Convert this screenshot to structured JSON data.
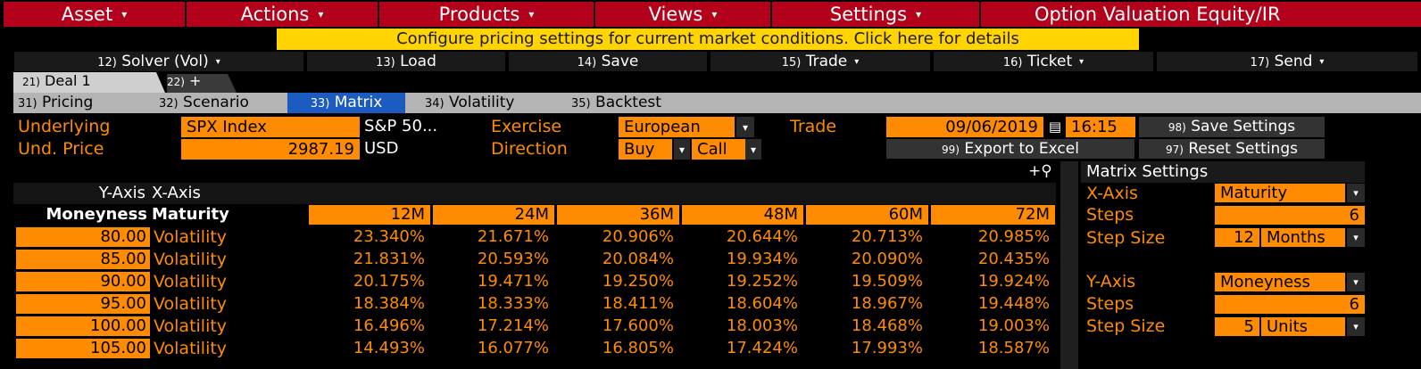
{
  "menu": {
    "asset": "Asset",
    "actions": "Actions",
    "products": "Products",
    "views": "Views",
    "settings": "Settings",
    "title": "Option Valuation Equity/IR",
    "caret": "▾"
  },
  "notice": "Configure pricing settings for current market conditions. Click here for details",
  "actions": [
    {
      "num": "12)",
      "label": "Solver (Vol)",
      "caret": "▾"
    },
    {
      "num": "13)",
      "label": "Load",
      "caret": ""
    },
    {
      "num": "14)",
      "label": "Save",
      "caret": ""
    },
    {
      "num": "15)",
      "label": "Trade",
      "caret": "▾"
    },
    {
      "num": "16)",
      "label": "Ticket",
      "caret": "▾"
    },
    {
      "num": "17)",
      "label": "Send",
      "caret": "▾"
    }
  ],
  "deal_tabs": [
    {
      "num": "21)",
      "label": "Deal 1"
    },
    {
      "num": "22)",
      "label": "+"
    }
  ],
  "sub_tabs": [
    {
      "num": "31)",
      "label": "Pricing"
    },
    {
      "num": "32)",
      "label": "Scenario"
    },
    {
      "num": "33)",
      "label": "Matrix"
    },
    {
      "num": "34)",
      "label": "Volatility"
    },
    {
      "num": "35)",
      "label": "Backtest"
    }
  ],
  "deal": {
    "underlying_label": "Underlying",
    "underlying_value": "SPX Index",
    "underlying_desc": "S&P 50...",
    "und_price_label": "Und. Price",
    "und_price_value": "2987.19",
    "currency": "USD",
    "exercise_label": "Exercise",
    "exercise_value": "European",
    "direction_label": "Direction",
    "direction_buy": "Buy",
    "direction_call": "Call",
    "trade_label": "Trade",
    "trade_date": "09/06/2019",
    "trade_time": "16:15",
    "dd_caret": "▾",
    "calendar_icon": "▤"
  },
  "buttons": {
    "save_settings_num": "98)",
    "save_settings": "Save Settings",
    "export_num": "99)",
    "export": "Export to Excel",
    "reset_num": "97)",
    "reset": "Reset Settings",
    "zoom_icon": "+⚲"
  },
  "matrix": {
    "y_axis_label": "Y-Axis",
    "x_axis_label": "X-Axis",
    "y_axis_name": "Moneyness",
    "x_axis_name": "Maturity",
    "columns": [
      "12M",
      "24M",
      "36M",
      "48M",
      "60M",
      "72M"
    ],
    "rows": [
      {
        "y": "80.00",
        "label": "Volatility",
        "values": [
          "23.340%",
          "21.671%",
          "20.906%",
          "20.644%",
          "20.713%",
          "20.985%"
        ]
      },
      {
        "y": "85.00",
        "label": "Volatility",
        "values": [
          "21.831%",
          "20.593%",
          "20.084%",
          "19.934%",
          "20.090%",
          "20.435%"
        ]
      },
      {
        "y": "90.00",
        "label": "Volatility",
        "values": [
          "20.175%",
          "19.471%",
          "19.250%",
          "19.252%",
          "19.509%",
          "19.924%"
        ]
      },
      {
        "y": "95.00",
        "label": "Volatility",
        "values": [
          "18.384%",
          "18.333%",
          "18.411%",
          "18.604%",
          "18.967%",
          "19.448%"
        ]
      },
      {
        "y": "100.00",
        "label": "Volatility",
        "values": [
          "16.496%",
          "17.214%",
          "17.600%",
          "18.003%",
          "18.468%",
          "19.003%"
        ]
      },
      {
        "y": "105.00",
        "label": "Volatility",
        "values": [
          "14.493%",
          "16.077%",
          "16.805%",
          "17.424%",
          "17.993%",
          "18.587%"
        ]
      }
    ]
  },
  "matrix_settings": {
    "title": "Matrix Settings",
    "x_axis_label": "X-Axis",
    "x_axis_value": "Maturity",
    "x_steps_label": "Steps",
    "x_steps_value": "6",
    "x_step_size_label": "Step Size",
    "x_step_size_value": "12",
    "x_step_unit": "Months",
    "y_axis_label": "Y-Axis",
    "y_axis_value": "Moneyness",
    "y_steps_label": "Steps",
    "y_steps_value": "6",
    "y_step_size_label": "Step Size",
    "y_step_size_value": "5",
    "y_step_unit": "Units"
  },
  "colors": {
    "menu_red": "#b3001b",
    "accent_orange": "#ff8c00",
    "notice_yellow": "#ffd400",
    "active_tab_blue": "#1c5bbf"
  }
}
